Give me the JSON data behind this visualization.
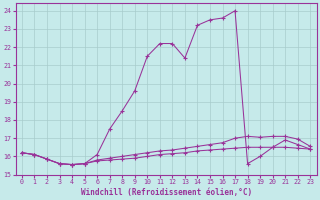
{
  "xlabel": "Windchill (Refroidissement éolien,°C)",
  "xlim": [
    -0.5,
    23.5
  ],
  "ylim": [
    15,
    24.4
  ],
  "xticks": [
    0,
    1,
    2,
    3,
    4,
    5,
    6,
    7,
    8,
    9,
    10,
    11,
    12,
    13,
    14,
    15,
    16,
    17,
    18,
    19,
    20,
    21,
    22,
    23
  ],
  "yticks": [
    15,
    16,
    17,
    18,
    19,
    20,
    21,
    22,
    23,
    24
  ],
  "background_color": "#c6eaea",
  "line_color": "#993399",
  "grid_color": "#a8cccc",
  "lines": [
    {
      "x": [
        0,
        1,
        2,
        3,
        4,
        5,
        6,
        7,
        8,
        9,
        10,
        11,
        12,
        13,
        14,
        15,
        16,
        17,
        18,
        19,
        20,
        21,
        22,
        23
      ],
      "y": [
        16.2,
        16.1,
        15.85,
        15.6,
        15.55,
        15.6,
        15.75,
        15.8,
        15.85,
        15.9,
        16.0,
        16.1,
        16.15,
        16.2,
        16.3,
        16.35,
        16.4,
        16.45,
        16.5,
        16.5,
        16.5,
        16.5,
        16.45,
        16.4
      ]
    },
    {
      "x": [
        0,
        1,
        2,
        3,
        4,
        5,
        6,
        7,
        8,
        9,
        10,
        11,
        12,
        13,
        14,
        15,
        16,
        17,
        18,
        19,
        20,
        21,
        22,
        23
      ],
      "y": [
        16.2,
        16.1,
        15.85,
        15.6,
        15.55,
        15.6,
        15.8,
        15.9,
        16.0,
        16.1,
        16.2,
        16.3,
        16.35,
        16.45,
        16.55,
        16.65,
        16.75,
        17.0,
        17.1,
        17.05,
        17.1,
        17.1,
        16.95,
        16.55
      ]
    },
    {
      "x": [
        0,
        1,
        2,
        3,
        4,
        5,
        6,
        7,
        8,
        9,
        10,
        11,
        12,
        13,
        14,
        15,
        16,
        17,
        18,
        19,
        20,
        21,
        22,
        23
      ],
      "y": [
        16.2,
        16.1,
        15.85,
        15.6,
        15.55,
        15.6,
        16.1,
        17.5,
        18.5,
        19.6,
        21.5,
        22.2,
        22.2,
        21.4,
        23.2,
        23.5,
        23.6,
        24.0,
        15.6,
        16.0,
        16.5,
        16.9,
        16.65,
        16.4
      ]
    }
  ]
}
